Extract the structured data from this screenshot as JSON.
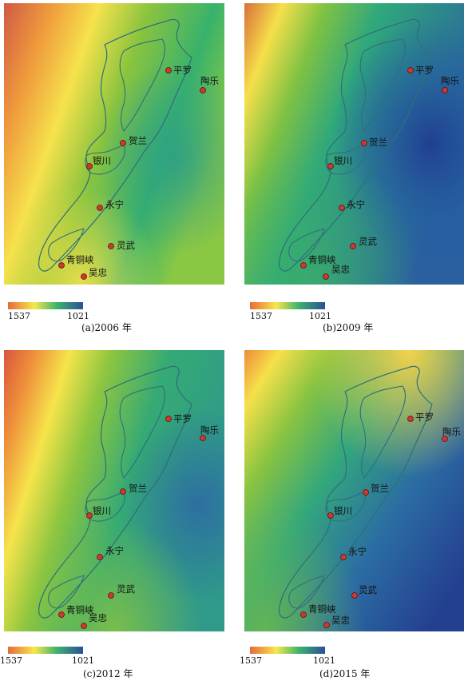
{
  "legend": {
    "max_label": "1537",
    "min_label": "1021",
    "colors": [
      "#e66a3a",
      "#f7e74a",
      "#3cb36a",
      "#2a4f9a"
    ]
  },
  "cities": [
    {
      "name": "平罗"
    },
    {
      "name": "陶乐"
    },
    {
      "name": "贺兰"
    },
    {
      "name": "银川"
    },
    {
      "name": "永宁"
    },
    {
      "name": "灵武"
    },
    {
      "name": "青铜峡"
    },
    {
      "name": "吴忠"
    }
  ],
  "panels": [
    {
      "caption": "(a)2006 年"
    },
    {
      "caption": "(b)2009 年"
    },
    {
      "caption": "(c)2012 年"
    },
    {
      "caption": "(d)2015 年"
    }
  ]
}
